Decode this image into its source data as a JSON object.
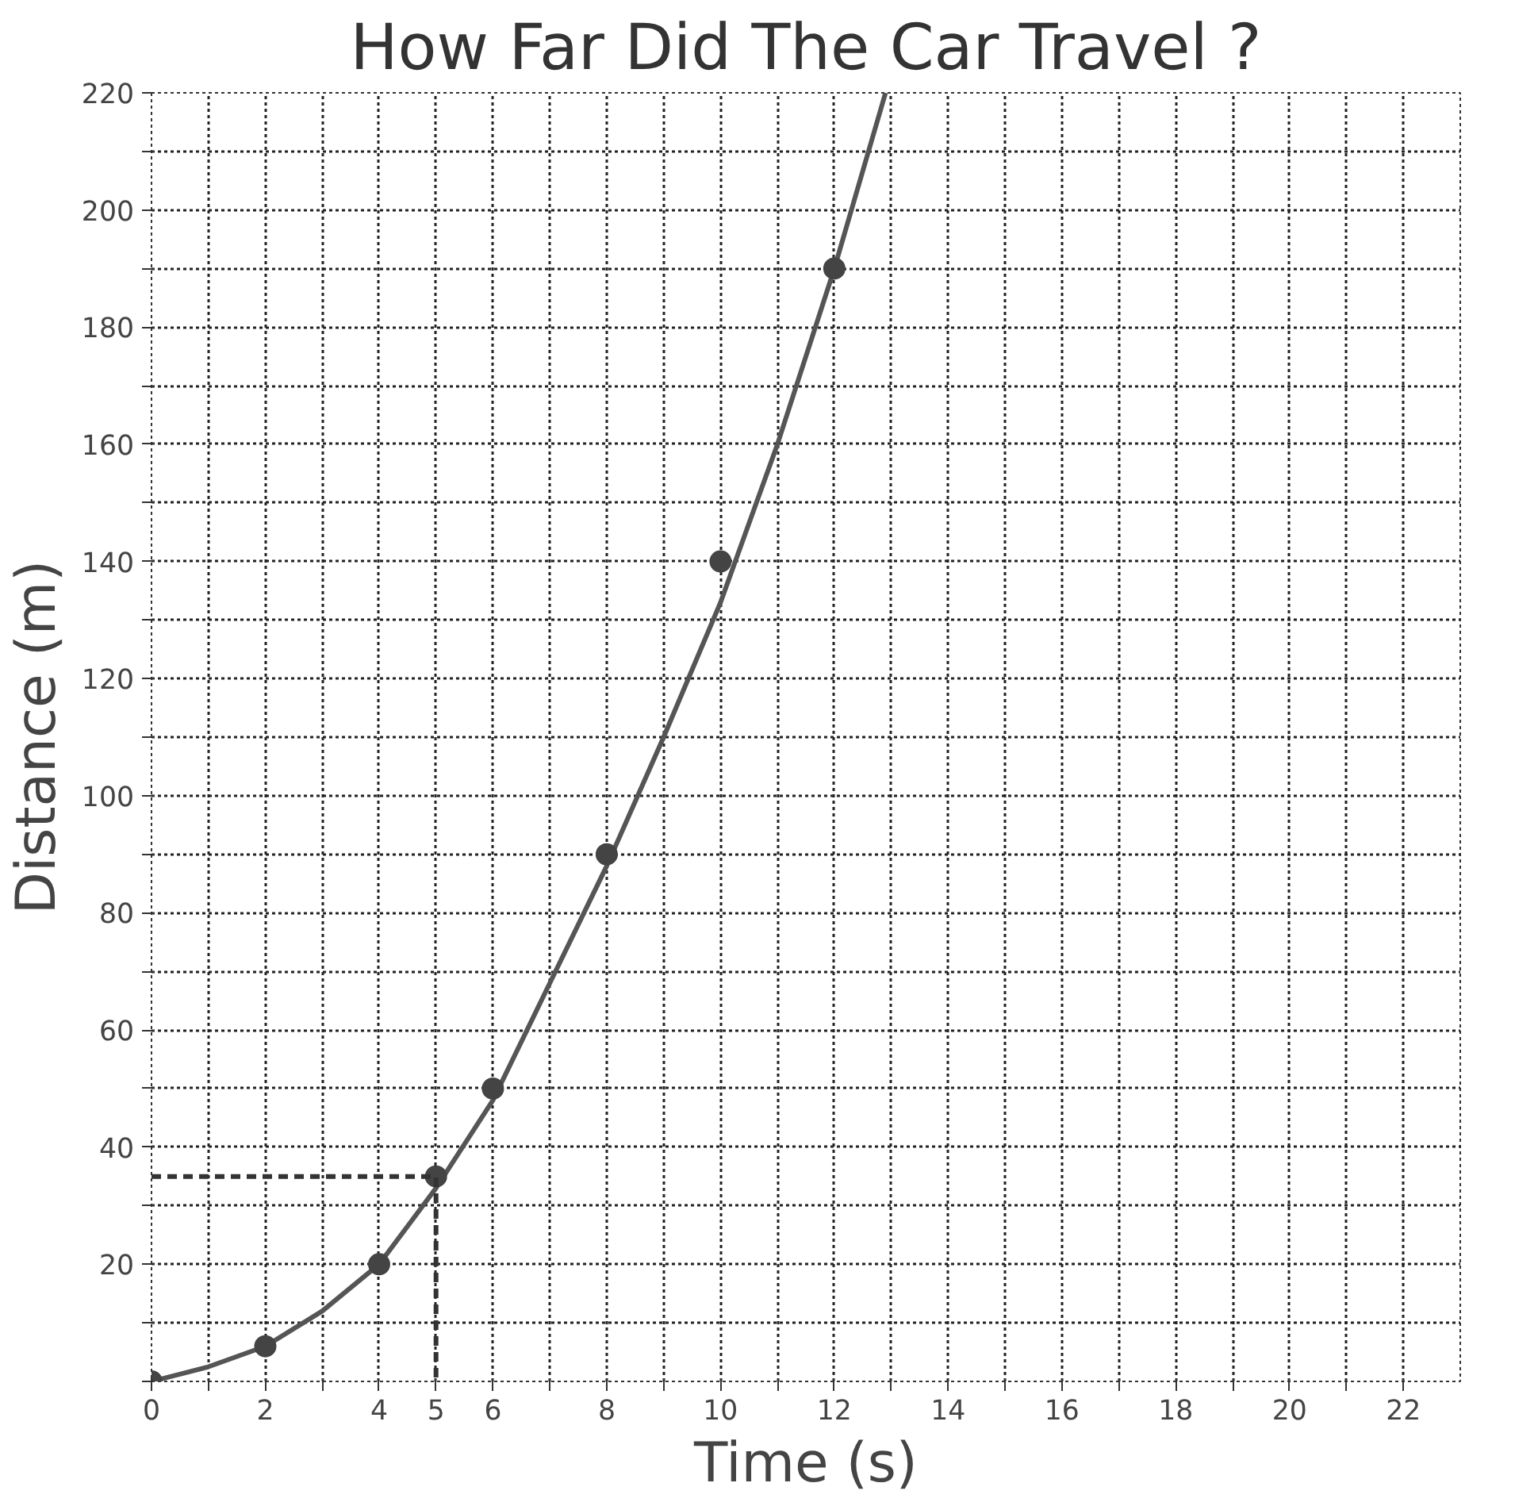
{
  "chart_data": {
    "type": "line",
    "title": "How Far Did The Car Travel ?",
    "xlabel": "Time (s)",
    "ylabel": "Distance (m)",
    "xlim": [
      0,
      23
    ],
    "ylim": [
      0,
      220
    ],
    "xticks": [
      0,
      {
        "value": 1,
        "label": null
      },
      2,
      {
        "value": 3,
        "label": null
      },
      4,
      5,
      6,
      {
        "value": 7,
        "label": null
      },
      8,
      {
        "value": 9,
        "label": null
      },
      10,
      {
        "value": 11,
        "label": null
      },
      12,
      {
        "value": 13,
        "label": null
      },
      14,
      {
        "value": 15,
        "label": null
      },
      16,
      {
        "value": 17,
        "label": null
      },
      18,
      {
        "value": 19,
        "label": null
      },
      20,
      {
        "value": 21,
        "label": null
      },
      22
    ],
    "yticks": [
      {
        "value": 0,
        "label": null
      },
      {
        "value": 10,
        "label": null
      },
      20,
      {
        "value": 30,
        "label": null
      },
      40,
      {
        "value": 50,
        "label": null
      },
      60,
      {
        "value": 70,
        "label": null
      },
      80,
      {
        "value": 90,
        "label": null
      },
      100,
      {
        "value": 110,
        "label": null
      },
      120,
      {
        "value": 130,
        "label": null
      },
      140,
      {
        "value": 150,
        "label": null
      },
      160,
      {
        "value": 170,
        "label": null
      },
      180,
      {
        "value": 190,
        "label": null
      },
      200,
      {
        "value": 210,
        "label": null
      },
      220
    ],
    "grid": true,
    "series": [
      {
        "color": "#555555",
        "line_style": "solid",
        "x": [
          0,
          1,
          2,
          3,
          4,
          5,
          6,
          7,
          8,
          9,
          10,
          11,
          12,
          12.9
        ],
        "values": [
          0,
          2.5,
          6,
          12,
          20,
          33,
          48,
          68,
          88,
          110,
          133,
          160,
          190,
          220
        ]
      },
      {
        "type": "scatter",
        "marker": "circle",
        "color": "#444444",
        "x": [
          0,
          2,
          4,
          5,
          6,
          8,
          10,
          12
        ],
        "values": [
          0,
          6,
          20,
          35,
          50,
          90,
          140,
          190
        ]
      },
      {
        "color": "#333333",
        "line_style": "dashed",
        "x": [
          0,
          5,
          5
        ],
        "values": [
          35,
          35,
          0
        ]
      }
    ]
  }
}
